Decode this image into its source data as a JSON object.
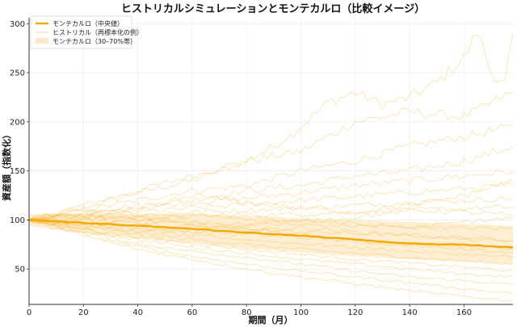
{
  "chart_data": {
    "type": "line",
    "title": "ヒストリカルシミュレーションとモンテカルロ（比較イメージ）",
    "xlabel": "期間（月）",
    "ylabel": "資産額（指数化）",
    "xlim": [
      0,
      178
    ],
    "ylim": [
      14,
      306
    ],
    "xticks": [
      0,
      20,
      40,
      60,
      80,
      100,
      120,
      140,
      160
    ],
    "yticks": [
      50,
      100,
      150,
      200,
      250,
      300
    ],
    "grid": true,
    "legend": {
      "placement": "top-left",
      "entries": [
        {
          "label": "モンテカルロ（中央値）",
          "kind": "line"
        },
        {
          "label": "ヒストリカル（再標本化の例）",
          "kind": "thin-line"
        },
        {
          "label": "モンテカルロ（30–70%帯）",
          "kind": "band"
        }
      ]
    },
    "colors": {
      "median": "#f5a800",
      "band": "#fde8c4",
      "paths": "#f7b733"
    },
    "median": {
      "x": [
        0,
        20,
        40,
        60,
        80,
        100,
        120,
        140,
        160,
        178
      ],
      "y": [
        100,
        97,
        94,
        91,
        87,
        84,
        80,
        76,
        75,
        72
      ]
    },
    "band": {
      "x": [
        0,
        20,
        40,
        60,
        80,
        100,
        120,
        140,
        160,
        178
      ],
      "lower": [
        94,
        87,
        81,
        76,
        71,
        67,
        63,
        60,
        58,
        55
      ],
      "upper": [
        106,
        107,
        106,
        106,
        104,
        102,
        100,
        98,
        96,
        94
      ]
    },
    "series": [
      {
        "x": [
          0,
          20,
          40,
          60,
          80,
          90,
          100,
          110,
          120,
          130,
          140,
          150,
          160,
          165,
          170,
          175,
          178
        ],
        "y": [
          100,
          112,
          128,
          140,
          160,
          175,
          195,
          220,
          230,
          218,
          225,
          240,
          265,
          292,
          250,
          240,
          290
        ]
      },
      {
        "x": [
          0,
          20,
          40,
          60,
          80,
          100,
          120,
          140,
          160,
          178
        ],
        "y": [
          100,
          115,
          130,
          145,
          160,
          170,
          200,
          210,
          205,
          230
        ]
      },
      {
        "x": [
          0,
          20,
          40,
          60,
          80,
          100,
          120,
          140,
          160,
          178
        ],
        "y": [
          100,
          110,
          120,
          130,
          135,
          150,
          160,
          175,
          185,
          195
        ]
      },
      {
        "x": [
          0,
          20,
          40,
          60,
          80,
          100,
          120,
          140,
          160,
          178
        ],
        "y": [
          100,
          108,
          115,
          120,
          130,
          135,
          145,
          150,
          160,
          175
        ]
      },
      {
        "x": [
          0,
          20,
          40,
          60,
          80,
          100,
          120,
          140,
          160,
          178
        ],
        "y": [
          100,
          106,
          112,
          118,
          122,
          128,
          135,
          140,
          145,
          150
        ]
      },
      {
        "x": [
          0,
          20,
          40,
          60,
          80,
          100,
          120,
          140,
          160,
          178
        ],
        "y": [
          100,
          104,
          108,
          112,
          116,
          120,
          124,
          128,
          132,
          136
        ]
      },
      {
        "x": [
          0,
          20,
          40,
          60,
          80,
          100,
          120,
          140,
          160,
          178
        ],
        "y": [
          100,
          102,
          105,
          108,
          110,
          112,
          115,
          118,
          120,
          122
        ]
      },
      {
        "x": [
          0,
          20,
          40,
          60,
          80,
          100,
          120,
          140,
          160,
          178
        ],
        "y": [
          100,
          101,
          102,
          104,
          105,
          106,
          108,
          110,
          112,
          113
        ]
      },
      {
        "x": [
          0,
          20,
          40,
          60,
          80,
          100,
          120,
          140,
          160,
          178
        ],
        "y": [
          100,
          99,
          98,
          97,
          96,
          95,
          94,
          93,
          92,
          91
        ]
      },
      {
        "x": [
          0,
          20,
          40,
          60,
          80,
          100,
          120,
          140,
          160,
          178
        ],
        "y": [
          100,
          97,
          95,
          93,
          90,
          88,
          86,
          84,
          82,
          80
        ]
      },
      {
        "x": [
          0,
          20,
          40,
          60,
          80,
          100,
          120,
          140,
          160,
          178
        ],
        "y": [
          100,
          96,
          92,
          88,
          85,
          82,
          79,
          76,
          73,
          70
        ]
      },
      {
        "x": [
          0,
          20,
          40,
          60,
          80,
          100,
          120,
          140,
          160,
          178
        ],
        "y": [
          100,
          95,
          89,
          84,
          80,
          76,
          72,
          68,
          65,
          62
        ]
      },
      {
        "x": [
          0,
          20,
          40,
          60,
          80,
          100,
          120,
          140,
          160,
          178
        ],
        "y": [
          100,
          93,
          86,
          80,
          75,
          70,
          66,
          62,
          58,
          55
        ]
      },
      {
        "x": [
          0,
          20,
          40,
          60,
          80,
          100,
          120,
          140,
          160,
          178
        ],
        "y": [
          100,
          91,
          83,
          76,
          70,
          65,
          60,
          56,
          52,
          48
        ]
      },
      {
        "x": [
          0,
          20,
          40,
          60,
          80,
          100,
          120,
          140,
          160,
          178
        ],
        "y": [
          100,
          90,
          80,
          72,
          66,
          60,
          55,
          50,
          45,
          42
        ]
      },
      {
        "x": [
          0,
          20,
          40,
          60,
          80,
          100,
          120,
          140,
          160,
          178
        ],
        "y": [
          100,
          88,
          76,
          68,
          62,
          55,
          48,
          42,
          38,
          34
        ]
      },
      {
        "x": [
          0,
          20,
          40,
          60,
          80,
          100,
          120,
          140,
          160,
          178
        ],
        "y": [
          100,
          86,
          73,
          63,
          55,
          48,
          42,
          36,
          30,
          25
        ]
      },
      {
        "x": [
          0,
          20,
          40,
          60,
          80,
          100,
          120,
          140,
          160,
          178
        ],
        "y": [
          100,
          84,
          70,
          60,
          50,
          42,
          35,
          28,
          22,
          18
        ]
      },
      {
        "x": [
          0,
          20,
          40,
          60,
          80,
          100,
          120,
          140,
          160,
          178
        ],
        "y": [
          100,
          105,
          100,
          95,
          90,
          92,
          88,
          85,
          80,
          78
        ]
      },
      {
        "x": [
          0,
          20,
          40,
          60,
          80,
          100,
          120,
          140,
          160,
          178
        ],
        "y": [
          100,
          95,
          100,
          105,
          102,
          98,
          103,
          110,
          108,
          105
        ]
      },
      {
        "x": [
          0,
          20,
          40,
          60,
          80,
          100,
          120,
          140,
          160,
          178
        ],
        "y": [
          100,
          110,
          105,
          98,
          90,
          85,
          78,
          74,
          70,
          66
        ]
      },
      {
        "x": [
          0,
          20,
          40,
          60,
          80,
          100,
          120,
          140,
          160,
          178
        ],
        "y": [
          100,
          103,
          110,
          125,
          118,
          112,
          108,
          115,
          125,
          140
        ]
      },
      {
        "x": [
          0,
          20,
          40,
          60,
          80,
          100,
          120,
          140,
          160,
          178
        ],
        "y": [
          100,
          92,
          88,
          90,
          95,
          100,
          96,
          92,
          98,
          102
        ]
      }
    ]
  }
}
